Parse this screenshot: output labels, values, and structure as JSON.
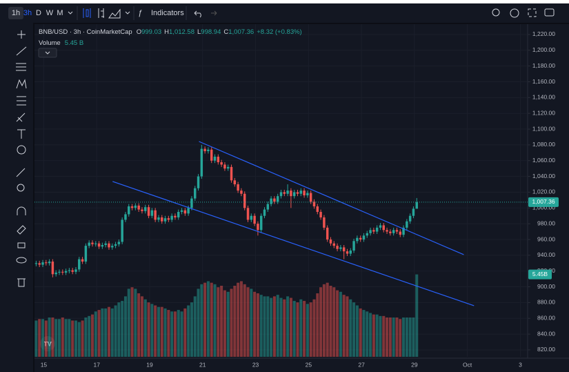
{
  "toolbar": {
    "intervals": [
      "1h",
      "3h",
      "D",
      "W",
      "M"
    ],
    "indicators": "Indicators"
  },
  "chart_data": {
    "type": "candlestick",
    "title": "BNB/USD · 3h · CoinMarketCap",
    "ohlc_names": [
      "O",
      "H",
      "L",
      "C"
    ],
    "ohlc_labels": [
      "999.03",
      "1,012.58",
      "998.94",
      "1,007.36"
    ],
    "change_label": "+8.32 (+0.83%)",
    "volume_name": "Volume",
    "volume_label": "5.45 B",
    "volume_axis_label": "5.45B",
    "last_price_label": "1,007.36",
    "up_color": "#26a69a",
    "down_color": "#ef5350",
    "trendline_color": "#2962ff",
    "xlim": [
      -0.5,
      148.5
    ],
    "xticks": [
      {
        "value": 2.3,
        "label": "15"
      },
      {
        "value": 18.3,
        "label": "17"
      },
      {
        "value": 34.3,
        "label": "19"
      },
      {
        "value": 50.3,
        "label": "21"
      },
      {
        "value": 66.3,
        "label": "23"
      },
      {
        "value": 82.3,
        "label": "25"
      },
      {
        "value": 98.3,
        "label": "27"
      },
      {
        "value": 114.3,
        "label": "29"
      },
      {
        "value": 130.3,
        "label": "Oct"
      },
      {
        "value": 146.3,
        "label": "3"
      }
    ],
    "ylim": [
      811.2,
      1233.1
    ],
    "yticks": [
      {
        "value": 1220,
        "label": "1,220.00"
      },
      {
        "value": 1200,
        "label": "1,200.00"
      },
      {
        "value": 1180,
        "label": "1,180.00"
      },
      {
        "value": 1160,
        "label": "1,160.00"
      },
      {
        "value": 1140,
        "label": "1,140.00"
      },
      {
        "value": 1120,
        "label": "1,120.00"
      },
      {
        "value": 1100,
        "label": "1,100.00"
      },
      {
        "value": 1080,
        "label": "1,080.00"
      },
      {
        "value": 1060,
        "label": "1,060.00"
      },
      {
        "value": 1040,
        "label": "1,040.00"
      },
      {
        "value": 1020,
        "label": "1,020.00"
      },
      {
        "value": 1000,
        "label": "1,000.00"
      },
      {
        "value": 980,
        "label": "980.00"
      },
      {
        "value": 960,
        "label": "960.00"
      },
      {
        "value": 940,
        "label": "940.00"
      },
      {
        "value": 920,
        "label": "920.00"
      },
      {
        "value": 900,
        "label": "900.00"
      },
      {
        "value": 880,
        "label": "880.00"
      },
      {
        "value": 860,
        "label": "860.00"
      },
      {
        "value": 840,
        "label": "840.00"
      },
      {
        "value": 820,
        "label": "820.00"
      }
    ],
    "volume_ylim": [
      0,
      22000000000.0
    ],
    "open": [
      929,
      930,
      928,
      931,
      930,
      932,
      916,
      918,
      919,
      918,
      920,
      921,
      919,
      922,
      935,
      932,
      952,
      956,
      954,
      955,
      951,
      953,
      955,
      950,
      952,
      954,
      957,
      985,
      992,
      1002,
      1000,
      1003,
      998,
      996,
      1001,
      990,
      997,
      985,
      988,
      983,
      987,
      985,
      990,
      988,
      995,
      997,
      993,
      1000,
      1012,
      1025,
      1040,
      1075,
      1072,
      1074,
      1060,
      1065,
      1058,
      1055,
      1050,
      1052,
      1035,
      1030,
      1022,
      1018,
      1000,
      985,
      990,
      980,
      972,
      990,
      998,
      1005,
      1012,
      1008,
      1015,
      1020,
      1018,
      1022,
      1015,
      1020,
      1018,
      1022,
      1016,
      1019,
      1008,
      1002,
      995,
      988,
      975,
      960,
      955,
      952,
      948,
      950,
      945,
      942,
      946,
      958,
      962,
      960,
      965,
      968,
      972,
      970,
      975,
      978,
      972,
      970,
      968,
      972,
      970,
      966,
      975,
      983,
      990,
      999.03
    ],
    "high": [
      933,
      933,
      934,
      934,
      935,
      935,
      921,
      922,
      922,
      923,
      924,
      924,
      925,
      938,
      938,
      955,
      959,
      959,
      958,
      958,
      956,
      958,
      958,
      955,
      957,
      960,
      988,
      995,
      1005,
      1005,
      1006,
      1006,
      1001,
      1004,
      1004,
      1000,
      1000,
      991,
      991,
      990,
      990,
      993,
      993,
      998,
      1000,
      1000,
      1003,
      1015,
      1028,
      1043,
      1080,
      1078,
      1077,
      1077,
      1068,
      1068,
      1061,
      1058,
      1055,
      1055,
      1038,
      1033,
      1025,
      1021,
      1003,
      993,
      993,
      983,
      993,
      1001,
      1008,
      1015,
      1015,
      1018,
      1023,
      1023,
      1030,
      1025,
      1023,
      1023,
      1025,
      1025,
      1022,
      1022,
      1011,
      1005,
      998,
      991,
      978,
      963,
      958,
      955,
      953,
      953,
      948,
      949,
      961,
      965,
      965,
      968,
      971,
      975,
      975,
      978,
      981,
      981,
      975,
      973,
      975,
      975,
      973,
      978,
      986,
      993,
      1002,
      1012.58
    ],
    "low": [
      926,
      925,
      925,
      927,
      927,
      912,
      913,
      915,
      915,
      915,
      917,
      916,
      916,
      919,
      929,
      929,
      949,
      951,
      951,
      948,
      948,
      950,
      947,
      947,
      949,
      951,
      954,
      982,
      989,
      997,
      997,
      995,
      993,
      993,
      987,
      987,
      982,
      982,
      980,
      980,
      982,
      982,
      985,
      985,
      992,
      990,
      990,
      997,
      1009,
      1022,
      1037,
      1069,
      1069,
      1057,
      1057,
      1055,
      1052,
      1047,
      1047,
      1032,
      1027,
      1019,
      1015,
      997,
      982,
      982,
      977,
      965,
      969,
      987,
      995,
      1002,
      1005,
      1005,
      1012,
      1015,
      1015,
      1000,
      1012,
      1015,
      1015,
      1013,
      1013,
      1005,
      999,
      992,
      985,
      972,
      957,
      952,
      949,
      945,
      945,
      935,
      939,
      939,
      943,
      955,
      957,
      957,
      962,
      965,
      967,
      967,
      972,
      969,
      967,
      965,
      965,
      967,
      963,
      963,
      972,
      980,
      987,
      998.94
    ],
    "close": [
      930,
      928,
      931,
      930,
      932,
      916,
      918,
      919,
      918,
      920,
      921,
      919,
      922,
      935,
      932,
      952,
      956,
      954,
      955,
      951,
      953,
      955,
      950,
      952,
      954,
      957,
      985,
      992,
      1002,
      1000,
      1003,
      998,
      996,
      1001,
      990,
      997,
      985,
      988,
      983,
      987,
      985,
      990,
      988,
      995,
      997,
      993,
      1000,
      1012,
      1025,
      1040,
      1075,
      1072,
      1074,
      1060,
      1065,
      1058,
      1055,
      1050,
      1052,
      1035,
      1030,
      1022,
      1018,
      1000,
      985,
      990,
      980,
      972,
      990,
      998,
      1005,
      1012,
      1008,
      1015,
      1020,
      1018,
      1022,
      1015,
      1020,
      1018,
      1022,
      1016,
      1019,
      1008,
      1002,
      995,
      988,
      975,
      960,
      955,
      952,
      948,
      950,
      945,
      942,
      946,
      958,
      962,
      960,
      965,
      968,
      972,
      970,
      975,
      978,
      972,
      970,
      968,
      972,
      970,
      966,
      975,
      983,
      990,
      999.03,
      1007.36
    ],
    "volume": [
      2400000000.0,
      2500000000.0,
      2500000000.0,
      2400000000.0,
      2600000000.0,
      2600000000.0,
      2500000000.0,
      2500000000.0,
      2600000000.0,
      2500000000.0,
      2500000000.0,
      2400000000.0,
      2400000000.0,
      2300000000.0,
      2400000000.0,
      2600000000.0,
      2700000000.0,
      2800000000.0,
      3000000000.0,
      3100000000.0,
      3200000000.0,
      3200000000.0,
      3300000000.0,
      3200000000.0,
      3400000000.0,
      3600000000.0,
      3700000000.0,
      4000000000.0,
      4500000000.0,
      4600000000.0,
      4500000000.0,
      4200000000.0,
      4000000000.0,
      3800000000.0,
      3600000000.0,
      3500000000.0,
      3400000000.0,
      3300000000.0,
      3300000000.0,
      3200000000.0,
      3100000000.0,
      3000000000.0,
      3000000000.0,
      3100000000.0,
      3000000000.0,
      3200000000.0,
      3400000000.0,
      3600000000.0,
      4000000000.0,
      4500000000.0,
      4800000000.0,
      4900000000.0,
      5000000000.0,
      4900000000.0,
      4800000000.0,
      4600000000.0,
      4700000000.0,
      4400000000.0,
      4300000000.0,
      4500000000.0,
      4700000000.0,
      4900000000.0,
      5000000000.0,
      4800000000.0,
      4600000000.0,
      4500000000.0,
      4300000000.0,
      4200000000.0,
      4100000000.0,
      4000000000.0,
      4000000000.0,
      3900000000.0,
      4000000000.0,
      4100000000.0,
      3900000000.0,
      3800000000.0,
      4000000000.0,
      3900000000.0,
      3700000000.0,
      3600000000.0,
      3800000000.0,
      3700000000.0,
      3500000000.0,
      3600000000.0,
      3800000000.0,
      4200000000.0,
      4600000000.0,
      4800000000.0,
      4900000000.0,
      4700000000.0,
      4600000000.0,
      4400000000.0,
      4300000000.0,
      4100000000.0,
      4000000000.0,
      3800000000.0,
      3600000000.0,
      3400000000.0,
      3200000000.0,
      3100000000.0,
      3000000000.0,
      2900000000.0,
      2800000000.0,
      2800000000.0,
      2700000000.0,
      2700000000.0,
      2600000000.0,
      2600000000.0,
      2600000000.0,
      2600000000.0,
      2500000000.0,
      2600000000.0,
      2600000000.0,
      2600000000.0,
      2600000000.0,
      5450000000.0
    ],
    "trendlines": [
      {
        "start": [
          49.2,
          1084.3
        ],
        "end": [
          129.2,
          940.8
        ]
      },
      {
        "start": [
          23.1,
          1033.6
        ],
        "end": [
          132.3,
          876
        ]
      }
    ]
  }
}
